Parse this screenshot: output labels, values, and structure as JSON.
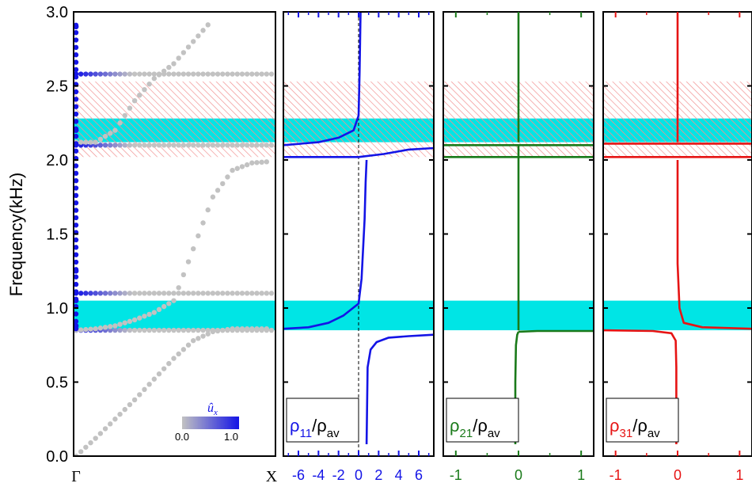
{
  "chart_data": [
    {
      "type": "scatter",
      "panel": "band-structure",
      "ylabel": "Frequency(kHz)",
      "ylim": [
        0,
        3.0
      ],
      "yticks": [
        "0.0",
        "0.5",
        "1.0",
        "1.5",
        "2.0",
        "2.5",
        "3.0"
      ],
      "xticks": [
        "Γ",
        "X"
      ],
      "colorbar": {
        "label": "û",
        "label_sub": "x",
        "min_label": "0.0",
        "max_label": "1.0",
        "low_color": "#c2c2c2",
        "high_color": "#1414e6"
      },
      "bands_flat": [
        0.85,
        1.1,
        2.1,
        2.58
      ],
      "bands_curved": [
        {
          "name": "acoustic-1",
          "x": [
            0,
            0.1,
            0.2,
            0.3,
            0.4,
            0.5,
            0.6,
            0.7,
            0.8,
            0.9,
            1.0
          ],
          "y": [
            0,
            0.12,
            0.25,
            0.38,
            0.52,
            0.66,
            0.78,
            0.84,
            0.86,
            0.86,
            0.86
          ]
        },
        {
          "name": "acoustic-2",
          "x": [
            0,
            0.1,
            0.2,
            0.3,
            0.4,
            0.5,
            0.6,
            0.7,
            0.8,
            0.9,
            1.0
          ],
          "y": [
            0.85,
            0.86,
            0.88,
            0.92,
            0.97,
            1.05,
            1.4,
            1.75,
            1.93,
            1.98,
            1.99
          ]
        },
        {
          "name": "upper",
          "x": [
            0,
            0.1,
            0.2,
            0.3,
            0.4,
            0.5,
            0.6,
            0.7
          ],
          "y": [
            2.12,
            2.12,
            2.2,
            2.4,
            2.55,
            2.65,
            2.8,
            2.95
          ]
        }
      ],
      "bands_gamma": {
        "x": [
          0,
          0,
          0,
          0,
          0
        ],
        "y": [
          0.88,
          1.05,
          1.25,
          2.2,
          2.9
        ]
      },
      "bands_shaded": [
        {
          "from": 0.85,
          "to": 1.05,
          "style": "solid",
          "color": "#00e5e5"
        },
        {
          "from": 2.12,
          "to": 2.28,
          "style": "cyan-hatch",
          "color": "#00e5e5"
        },
        {
          "from": 2.02,
          "to": 2.53,
          "style": "red-hatch",
          "color": "#f28c8c"
        }
      ]
    },
    {
      "type": "line",
      "panel": "rho11",
      "color": "#1414e6",
      "label_main": "ρ",
      "label_sub": "11",
      "label_sep": "/ρ",
      "label_den_sub": "av",
      "xlim": [
        -7.5,
        7.5
      ],
      "xticks": [
        "-6",
        "-4",
        "-2",
        "0",
        "2",
        "4",
        "6"
      ],
      "xtick_values": [
        -6,
        -4,
        -2,
        0,
        2,
        4,
        6
      ],
      "reference_line_x": 0,
      "segments": [
        {
          "x": [
            0.8,
            0.9,
            1.2,
            1.8,
            3,
            5,
            7.5
          ],
          "y": [
            0.08,
            0.6,
            0.72,
            0.77,
            0.8,
            0.81,
            0.82
          ]
        },
        {
          "x": [
            -7.5,
            -5,
            -3,
            -1.5,
            0,
            0.3,
            0.6,
            0.7,
            0.8
          ],
          "y": [
            0.86,
            0.87,
            0.9,
            0.95,
            1.03,
            1.2,
            1.6,
            1.85,
            2.0
          ]
        },
        {
          "x": [
            -7.5,
            0,
            2.5,
            5,
            7.5
          ],
          "y": [
            2.02,
            2.02,
            2.04,
            2.07,
            2.08
          ]
        },
        {
          "x": [
            -7.5,
            -4,
            -2,
            -0.5,
            0,
            0.1,
            0.2
          ],
          "y": [
            2.1,
            2.12,
            2.15,
            2.2,
            2.3,
            2.6,
            3.0
          ]
        }
      ],
      "bands_shaded": [
        {
          "from": 0.85,
          "to": 1.05,
          "style": "solid",
          "color": "#00e5e5"
        },
        {
          "from": 2.12,
          "to": 2.28,
          "style": "cyan-hatch",
          "color": "#00e5e5"
        },
        {
          "from": 2.02,
          "to": 2.53,
          "style": "red-hatch",
          "color": "#f28c8c"
        }
      ]
    },
    {
      "type": "line",
      "panel": "rho21",
      "color": "#1a7a1a",
      "label_main": "ρ",
      "label_sub": "21",
      "label_sep": "/ρ",
      "label_den_sub": "av",
      "xlim": [
        -1.2,
        1.2
      ],
      "xticks": [
        "-1",
        "0",
        "1"
      ],
      "xtick_values": [
        -1,
        0,
        1
      ],
      "segments": [
        {
          "x": [
            -0.05,
            -0.05,
            -0.04,
            -0.02,
            0
          ],
          "y": [
            0.08,
            0.5,
            0.75,
            0.82,
            0.84
          ]
        },
        {
          "x": [
            0,
            0.3,
            1.2
          ],
          "y": [
            0.84,
            0.845,
            0.845
          ]
        },
        {
          "x": [
            0,
            0,
            0,
            0
          ],
          "y": [
            0.85,
            1.5,
            2.0,
            2.1
          ]
        },
        {
          "x": [
            -1.2,
            -0.2,
            0,
            1.2
          ],
          "y": [
            2.02,
            2.02,
            2.02,
            2.02
          ]
        },
        {
          "x": [
            -1.2,
            0,
            1.2
          ],
          "y": [
            2.1,
            2.1,
            2.1
          ]
        },
        {
          "x": [
            0,
            0,
            0
          ],
          "y": [
            2.12,
            2.6,
            3.0
          ]
        }
      ],
      "bands_shaded": [
        {
          "from": 0.85,
          "to": 1.05,
          "style": "solid",
          "color": "#00e5e5"
        },
        {
          "from": 2.12,
          "to": 2.28,
          "style": "cyan-hatch",
          "color": "#00e5e5"
        },
        {
          "from": 2.02,
          "to": 2.53,
          "style": "red-hatch",
          "color": "#f28c8c"
        }
      ]
    },
    {
      "type": "line",
      "panel": "rho31",
      "color": "#e61414",
      "label_main": "ρ",
      "label_sub": "31",
      "label_sep": "/ρ",
      "label_den_sub": "av",
      "xlim": [
        -1.2,
        1.2
      ],
      "xticks": [
        "-1",
        "0",
        "1"
      ],
      "xtick_values": [
        -1,
        0,
        1
      ],
      "segments": [
        {
          "x": [
            -0.02,
            -0.02,
            -0.03,
            -0.1,
            -0.4,
            -1.2
          ],
          "y": [
            0.08,
            0.6,
            0.78,
            0.83,
            0.845,
            0.85
          ]
        },
        {
          "x": [
            1.2,
            0.4,
            0.1,
            0.03,
            0,
            0
          ],
          "y": [
            0.86,
            0.87,
            0.9,
            1.0,
            1.3,
            2.0
          ]
        },
        {
          "x": [
            -1.2,
            0,
            1.2
          ],
          "y": [
            2.02,
            2.02,
            2.02
          ]
        },
        {
          "x": [
            -1.2,
            0,
            1.2
          ],
          "y": [
            2.11,
            2.11,
            2.11
          ]
        },
        {
          "x": [
            0,
            0,
            0
          ],
          "y": [
            2.12,
            2.6,
            3.0
          ]
        }
      ],
      "bands_shaded": [
        {
          "from": 0.85,
          "to": 1.05,
          "style": "solid",
          "color": "#00e5e5"
        },
        {
          "from": 2.12,
          "to": 2.28,
          "style": "cyan-hatch",
          "color": "#00e5e5"
        },
        {
          "from": 2.02,
          "to": 2.53,
          "style": "red-hatch",
          "color": "#f28c8c"
        }
      ]
    }
  ]
}
